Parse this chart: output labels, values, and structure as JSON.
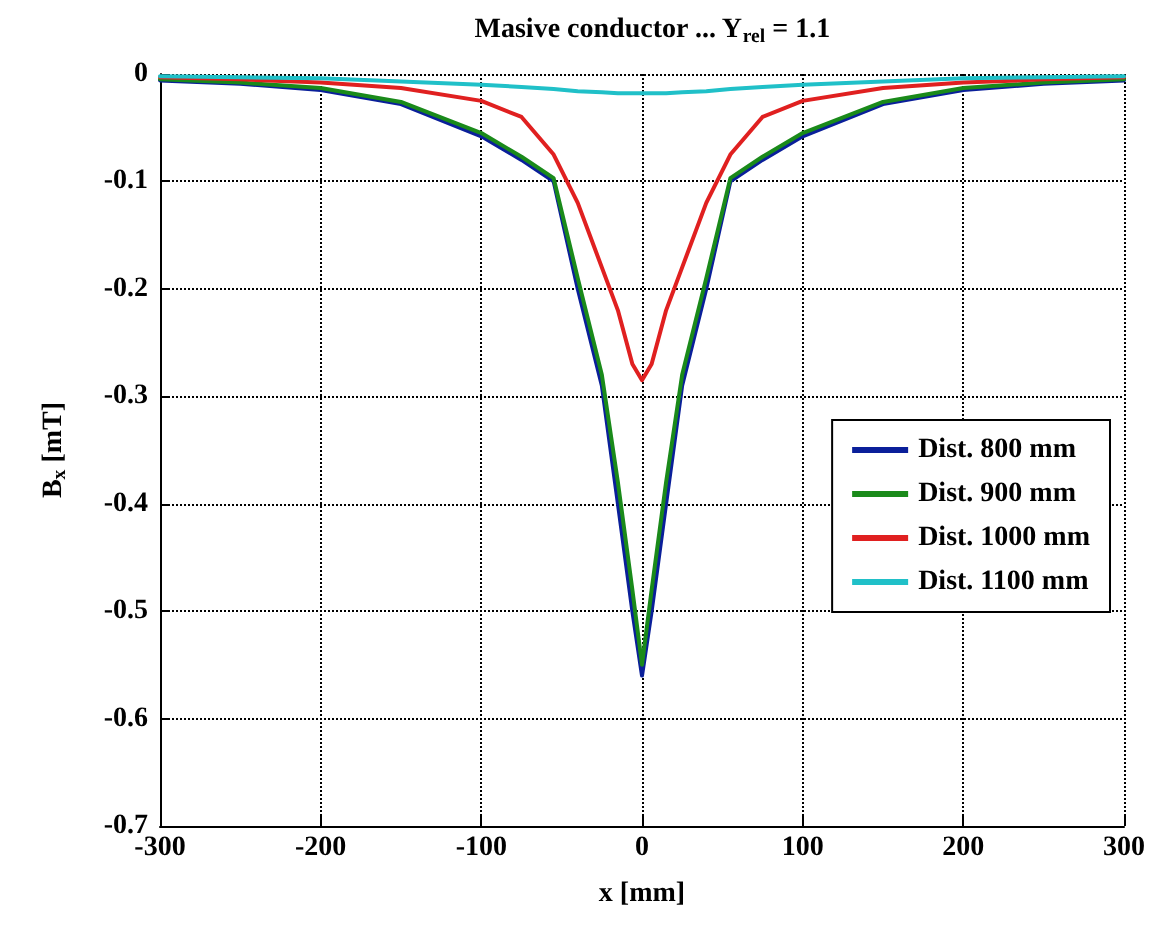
{
  "chart_data": {
    "type": "line",
    "title": "Masive conductor ... Y$_{rel}$ = 1.1",
    "xlabel": "x [mm]",
    "ylabel": "B$_{x}$ [mT]",
    "x": [
      -300,
      -250,
      -200,
      -150,
      -100,
      -75,
      -55,
      -40,
      -25,
      -15,
      -6,
      0,
      6,
      15,
      25,
      40,
      55,
      75,
      100,
      150,
      200,
      250,
      300
    ],
    "series": [
      {
        "name": "Dist. 800 mm",
        "color": "#0a1f9a",
        "values": [
          -0.006,
          -0.009,
          -0.015,
          -0.028,
          -0.058,
          -0.08,
          -0.1,
          -0.2,
          -0.29,
          -0.4,
          -0.5,
          -0.56,
          -0.5,
          -0.4,
          -0.29,
          -0.2,
          -0.1,
          -0.08,
          -0.058,
          -0.028,
          -0.015,
          -0.009,
          -0.006
        ]
      },
      {
        "name": "Dist. 900 mm",
        "color": "#1a8a1a",
        "values": [
          -0.005,
          -0.008,
          -0.013,
          -0.026,
          -0.055,
          -0.077,
          -0.097,
          -0.19,
          -0.28,
          -0.38,
          -0.48,
          -0.55,
          -0.48,
          -0.38,
          -0.28,
          -0.19,
          -0.097,
          -0.077,
          -0.055,
          -0.026,
          -0.013,
          -0.008,
          -0.005
        ]
      },
      {
        "name": "Dist. 1000 mm",
        "color": "#e02020",
        "values": [
          -0.003,
          -0.005,
          -0.008,
          -0.013,
          -0.025,
          -0.04,
          -0.075,
          -0.12,
          -0.18,
          -0.22,
          -0.27,
          -0.285,
          -0.27,
          -0.22,
          -0.18,
          -0.12,
          -0.075,
          -0.04,
          -0.025,
          -0.013,
          -0.008,
          -0.005,
          -0.003
        ]
      },
      {
        "name": "Dist. 1100 mm",
        "color": "#20c0c8",
        "values": [
          -0.002,
          -0.003,
          -0.004,
          -0.007,
          -0.01,
          -0.012,
          -0.014,
          -0.016,
          -0.017,
          -0.018,
          -0.018,
          -0.018,
          -0.018,
          -0.018,
          -0.017,
          -0.016,
          -0.014,
          -0.012,
          -0.01,
          -0.007,
          -0.004,
          -0.003,
          -0.002
        ]
      }
    ],
    "xlim": [
      -300,
      300
    ],
    "xticks": [
      -300,
      -200,
      -100,
      0,
      100,
      200,
      300
    ],
    "ylim": [
      -0.7,
      0
    ],
    "yticks": [
      -0.7,
      -0.6,
      -0.5,
      -0.4,
      -0.3,
      -0.2,
      -0.1,
      0
    ],
    "grid": true,
    "legend": "right",
    "line_style": "solid"
  }
}
